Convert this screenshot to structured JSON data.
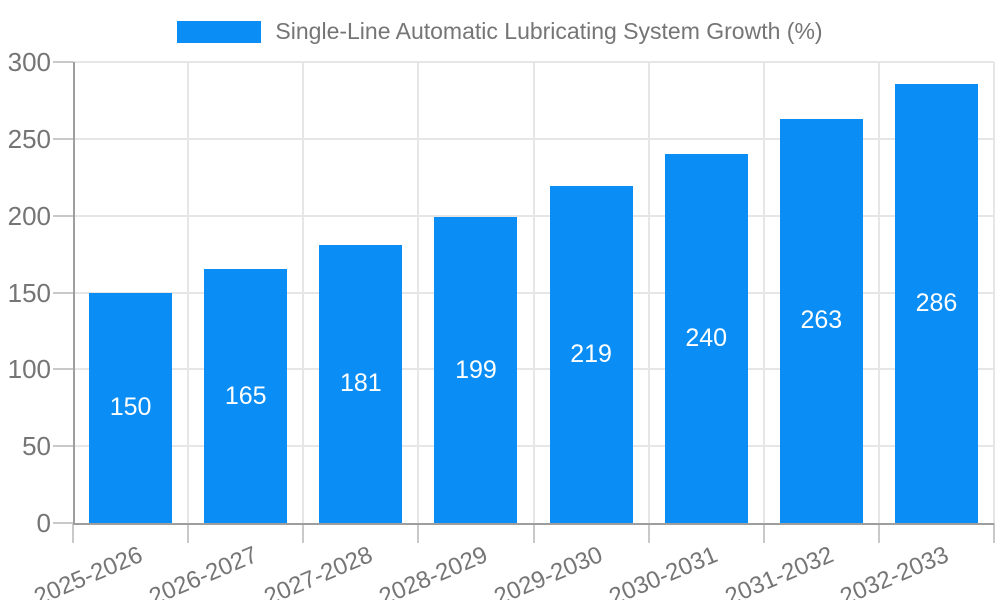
{
  "legend": {
    "label": "Single-Line Automatic Lubricating System Growth (%)"
  },
  "chart_data": {
    "type": "bar",
    "title": "Single-Line Automatic Lubricating System Growth (%)",
    "categories": [
      "2025-2026",
      "2026-2027",
      "2027-2028",
      "2028-2029",
      "2029-2030",
      "2030-2031",
      "2031-2032",
      "2032-2033"
    ],
    "values": [
      150,
      165,
      181,
      199,
      219,
      240,
      263,
      286
    ],
    "xlabel": "",
    "ylabel": "",
    "ylim": [
      0,
      300
    ],
    "yticks": [
      0,
      50,
      100,
      150,
      200,
      250,
      300
    ],
    "grid": true,
    "legend_position": "top-center",
    "value_labels": "inside-center",
    "x_label_rotation_deg": -23,
    "colors": {
      "bar": "#0a8df5",
      "value_label": "#ffffff",
      "axis": "#9e9e9e",
      "gridline": "#e6e6e6",
      "tick": "#c9c9c9",
      "text": "#757575"
    }
  }
}
